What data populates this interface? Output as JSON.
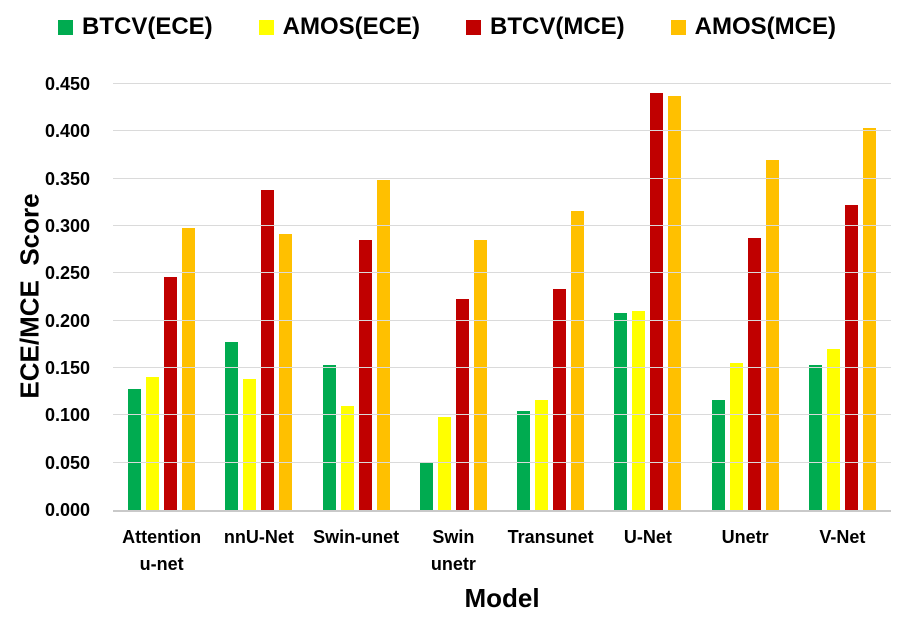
{
  "chart_data": {
    "type": "bar",
    "title": "",
    "xlabel": "Model",
    "ylabel": "ECE/MCE  Score",
    "ylim": [
      0,
      0.45
    ],
    "ytick_step": 0.05,
    "ytick_labels": [
      "0.000",
      "0.050",
      "0.100",
      "0.150",
      "0.200",
      "0.250",
      "0.300",
      "0.350",
      "0.400",
      "0.450"
    ],
    "grid": true,
    "legend_position": "top",
    "categories": [
      "Attention\nu-net",
      "nnU-Net",
      "Swin-unet",
      "Swin\nunetr",
      "Transunet",
      "U-Net",
      "Unetr",
      "V-Net"
    ],
    "series": [
      {
        "name": "BTCV(ECE)",
        "color": "#00AB50",
        "values": [
          0.128,
          0.178,
          0.153,
          0.05,
          0.105,
          0.208,
          0.116,
          0.153
        ]
      },
      {
        "name": "AMOS(ECE)",
        "color": "#FFFF00",
        "values": [
          0.14,
          0.138,
          0.11,
          0.098,
          0.116,
          0.21,
          0.155,
          0.17
        ]
      },
      {
        "name": "BTCV(MCE)",
        "color": "#C00000",
        "values": [
          0.246,
          0.338,
          0.285,
          0.223,
          0.233,
          0.44,
          0.287,
          0.322
        ]
      },
      {
        "name": "AMOS(MCE)",
        "color": "#FFC000",
        "values": [
          0.298,
          0.292,
          0.349,
          0.285,
          0.316,
          0.437,
          0.37,
          0.404
        ]
      }
    ]
  },
  "colors": {
    "background": "#FFFFFF",
    "text": "#000000",
    "gridline": "#DADADA",
    "axis_line": "#C9C9C9"
  }
}
